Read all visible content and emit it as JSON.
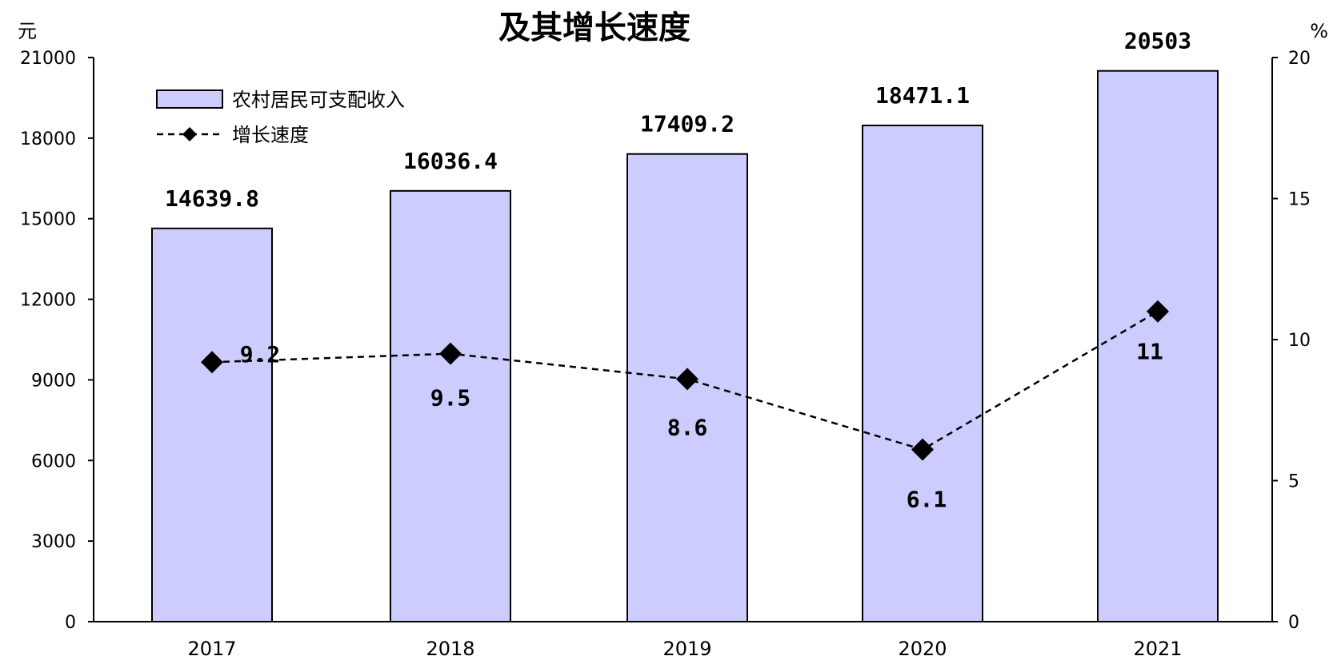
{
  "chart_data": {
    "type": "bar",
    "title": "及其增长速度",
    "left_axis_unit": "元",
    "right_axis_unit": "%",
    "categories": [
      "2017",
      "2018",
      "2019",
      "2020",
      "2021"
    ],
    "y_left": {
      "ylim": [
        0,
        21000
      ],
      "ticks": [
        0,
        3000,
        6000,
        9000,
        12000,
        15000,
        18000,
        21000
      ]
    },
    "y_right": {
      "ylim": [
        0,
        20
      ],
      "ticks": [
        0,
        5,
        10,
        15,
        20
      ]
    },
    "series": [
      {
        "name": "农村居民可支配收入",
        "type": "bar",
        "axis": "left",
        "color": "#ccccff",
        "values": [
          14639.8,
          16036.4,
          17409.2,
          18471.1,
          20503
        ],
        "labels": [
          "14639.8",
          "16036.4",
          "17409.2",
          "18471.1",
          "20503"
        ]
      },
      {
        "name": "增长速度",
        "type": "line",
        "axis": "right",
        "color": "#000000",
        "line_style": "dashed",
        "marker": "diamond",
        "values": [
          9.2,
          9.5,
          8.6,
          6.1,
          11
        ],
        "labels": [
          "9.2",
          "9.5",
          "8.6",
          "6.1",
          "11"
        ]
      }
    ],
    "grid": false,
    "legend_position": "top-left"
  }
}
